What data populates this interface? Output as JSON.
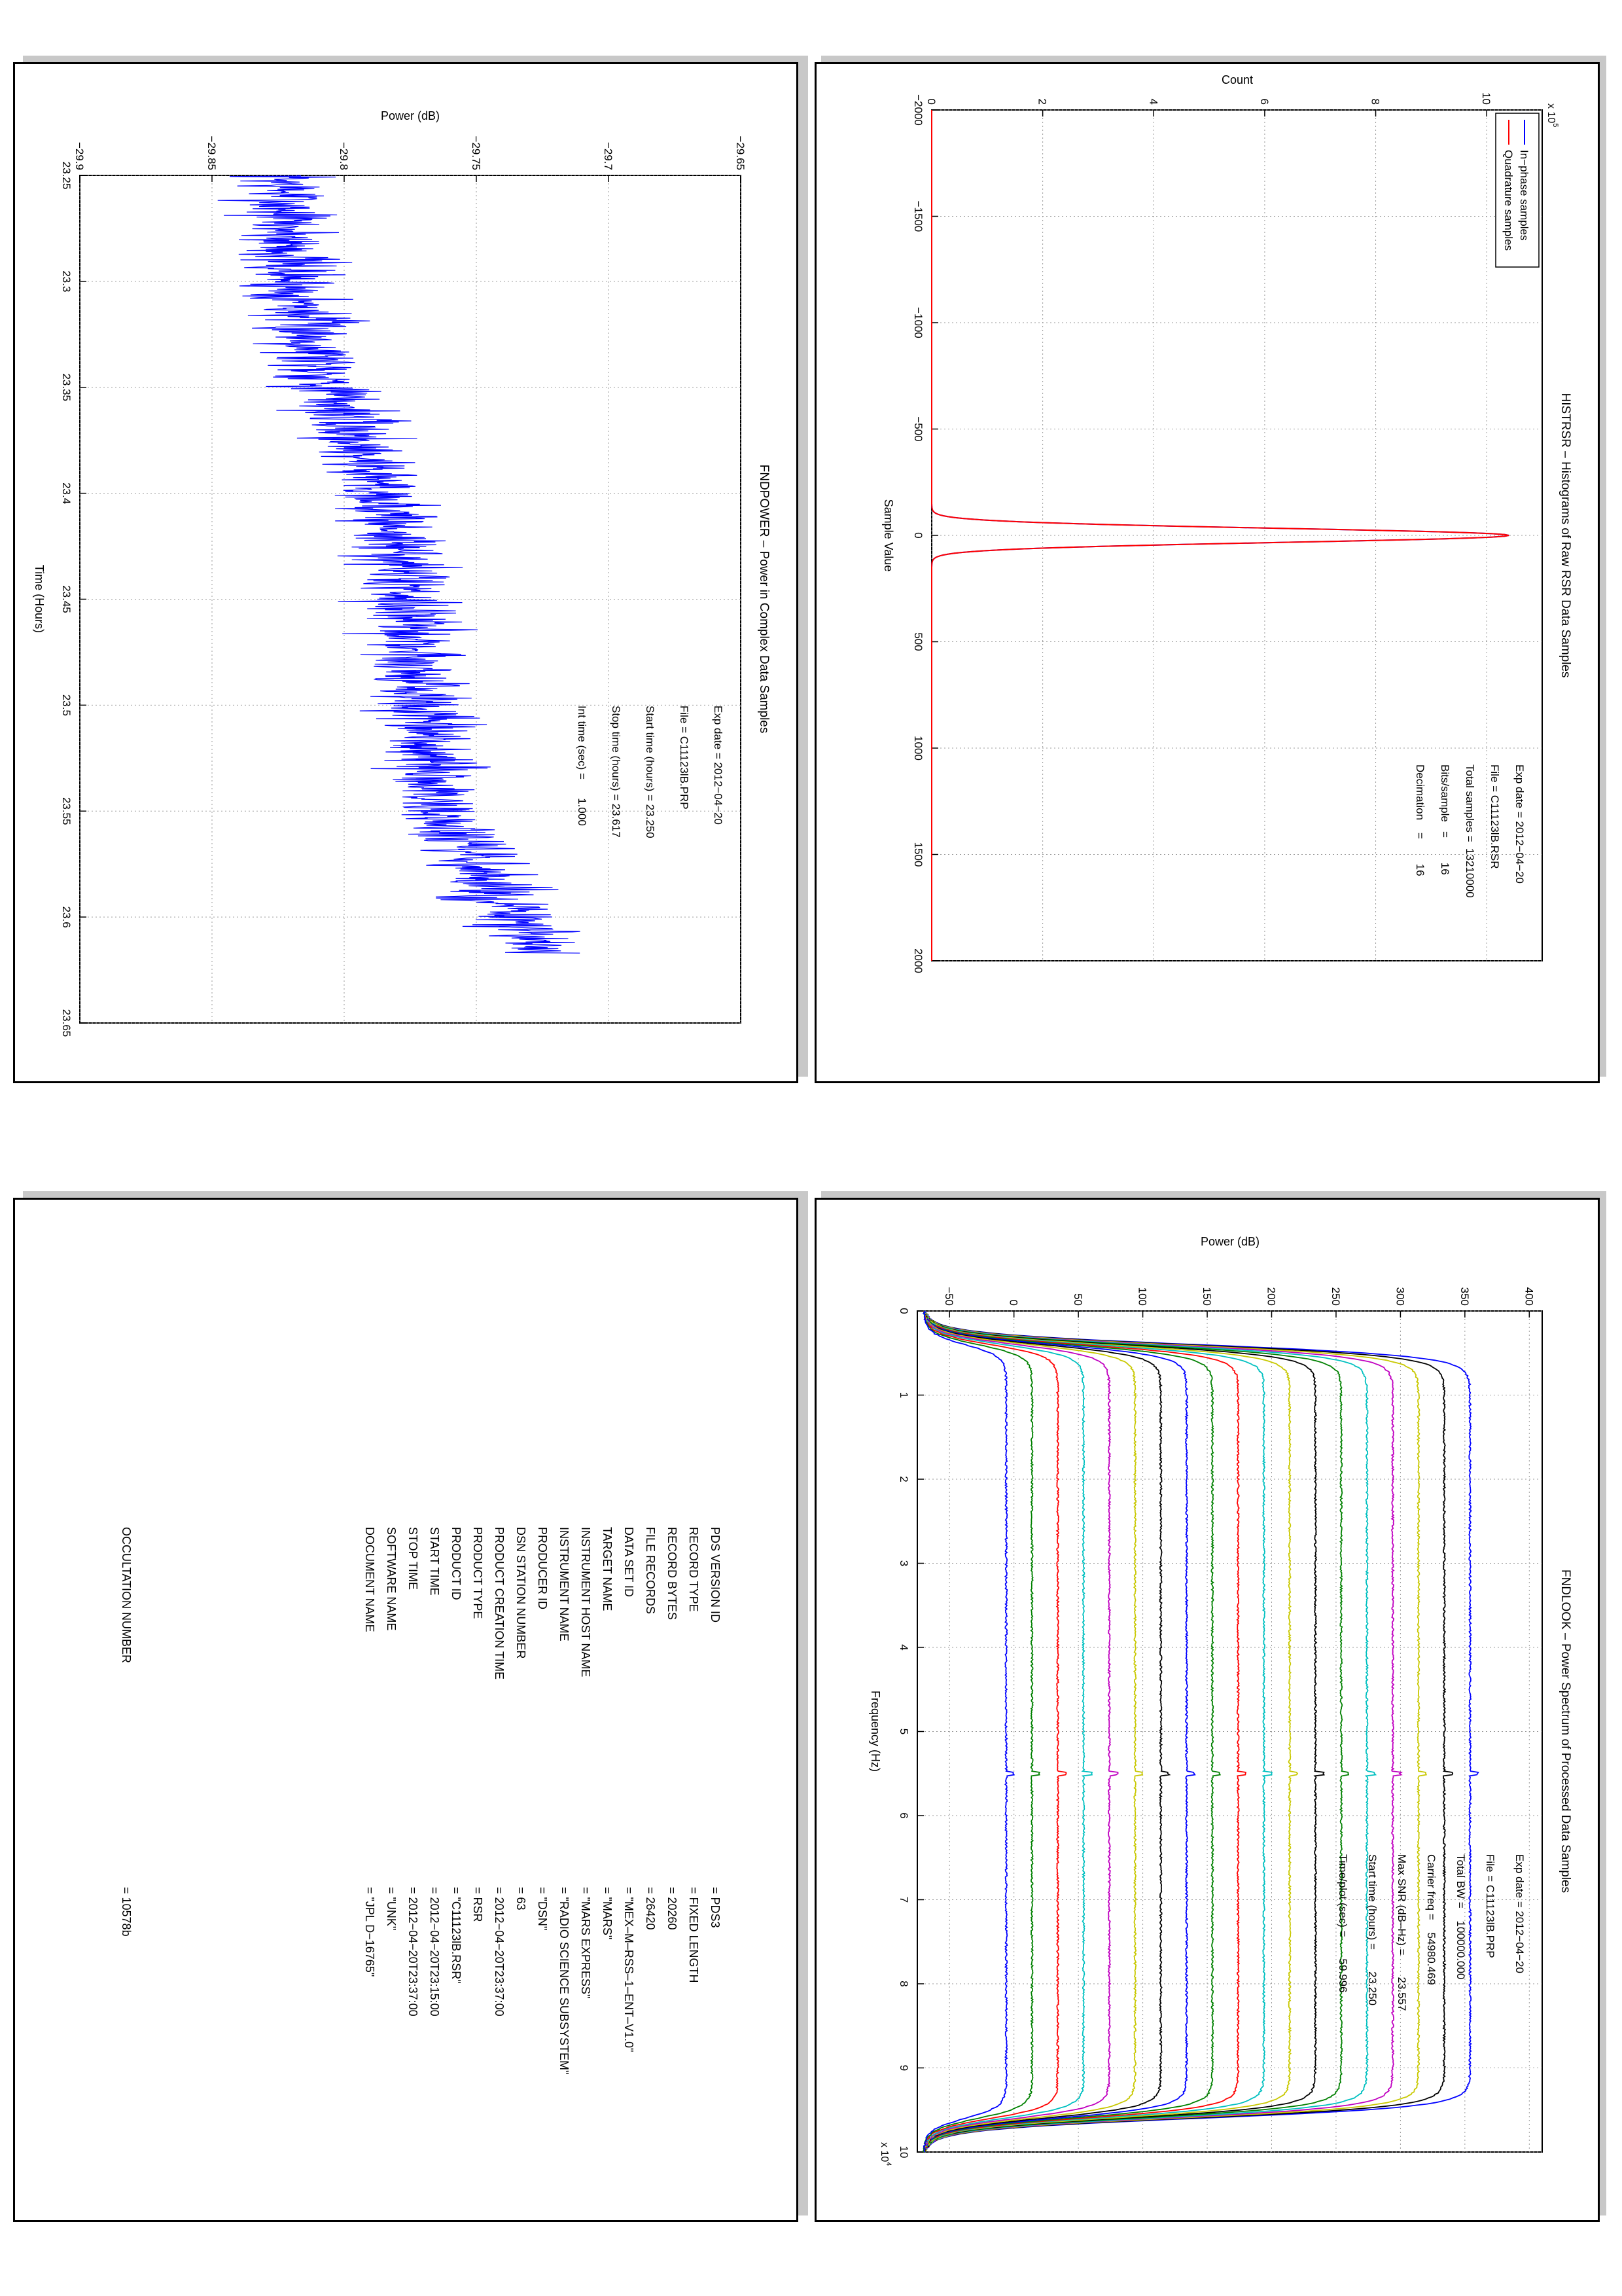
{
  "panels": {
    "histrsr": {
      "chart_data": {
        "type": "line",
        "title": "HISTRSR – Histograms of Raw RSR Data Samples",
        "xlabel": "Sample Value",
        "ylabel": "Count",
        "y_exponent": "x 10",
        "y_exponent_power": "5",
        "xlim": [
          -2000,
          2000
        ],
        "ylim": [
          0,
          11
        ],
        "xticks": [
          -2000,
          -1500,
          -1000,
          -500,
          0,
          500,
          1000,
          1500,
          2000
        ],
        "xtick_labels": [
          "−2000",
          "−1500",
          "−1000",
          "−500",
          "0",
          "500",
          "1000",
          "1500",
          "2000"
        ],
        "yticks": [
          0,
          2,
          4,
          6,
          8,
          10
        ],
        "ytick_labels": [
          "0",
          "2",
          "4",
          "6",
          "8",
          "10"
        ],
        "grid": true,
        "legend_position": "top-right",
        "series": [
          {
            "name": "In−phase samples",
            "color": "#0000ff",
            "model": "gaussian",
            "peak": 10.4,
            "center": 0,
            "sigma": 33
          },
          {
            "name": "Quadrature samples",
            "color": "#ff0000",
            "model": "gaussian",
            "peak": 10.4,
            "center": 0,
            "sigma": 33
          }
        ],
        "annotations": [
          "Exp date = 2012−04−20",
          "File = C11123lB.RSR",
          "Total samples =  13210000",
          "Bits/sample   =        16",
          "Decimation    =        16"
        ]
      }
    },
    "fndpower": {
      "chart_data": {
        "type": "line",
        "title": "FNDPOWER – Power in Complex Data Samples",
        "xlabel": "Time (Hours)",
        "ylabel": "Power (dB)",
        "xlim": [
          23.25,
          23.65
        ],
        "ylim": [
          -29.9,
          -29.65
        ],
        "xticks": [
          23.25,
          23.3,
          23.35,
          23.4,
          23.45,
          23.5,
          23.55,
          23.6,
          23.65
        ],
        "xtick_labels": [
          "23.25",
          "23.3",
          "23.35",
          "23.4",
          "23.45",
          "23.5",
          "23.55",
          "23.6",
          "23.65"
        ],
        "yticks": [
          -29.9,
          -29.85,
          -29.8,
          -29.75,
          -29.7,
          -29.65
        ],
        "ytick_labels": [
          "−29.9",
          "−29.85",
          "−29.8",
          "−29.75",
          "−29.7",
          "−29.65"
        ],
        "grid": true,
        "series": [
          {
            "name": "",
            "color": "#0000ff",
            "x": [
              23.25,
              23.3,
              23.35,
              23.4,
              23.45,
              23.5,
              23.55,
              23.6,
              23.617
            ],
            "y": [
              -29.823,
              -29.82,
              -29.805,
              -29.785,
              -29.775,
              -29.772,
              -29.765,
              -29.737,
              -29.727
            ],
            "noise_amplitude": 0.02
          }
        ],
        "annotations": [
          "Exp date = 2012−04−20",
          "File = C11123lB.PRP",
          "Start time (hours) = 23.250",
          "Stop time (hours) = 23.617",
          "Int time (sec) =      1.000"
        ]
      }
    },
    "fndlook": {
      "chart_data": {
        "type": "line",
        "title": "FNDLOOK – Power Spectrum of Processed Data Samples",
        "xlabel": "Frequency (Hz)",
        "ylabel": "Power (dB)",
        "x_exponent": "x 10",
        "x_exponent_power": "4",
        "xlim": [
          0,
          100000
        ],
        "ylim": [
          -75,
          410
        ],
        "xticks": [
          0,
          10000,
          20000,
          30000,
          40000,
          50000,
          60000,
          70000,
          80000,
          90000,
          100000
        ],
        "xtick_labels": [
          "0",
          "1",
          "2",
          "3",
          "4",
          "5",
          "6",
          "7",
          "8",
          "9",
          "10"
        ],
        "yticks": [
          -50,
          0,
          50,
          100,
          150,
          200,
          250,
          300,
          350,
          400
        ],
        "ytick_labels": [
          "−50",
          "0",
          "50",
          "100",
          "150",
          "200",
          "250",
          "300",
          "350",
          "400"
        ],
        "grid": true,
        "series": [
          {
            "name": "",
            "color": "#0000ff",
            "level": 354,
            "floor": -70
          },
          {
            "name": "",
            "color": "#000000",
            "level": 334,
            "floor": -70
          },
          {
            "name": "",
            "color": "#c8c800",
            "level": 314,
            "floor": -70
          },
          {
            "name": "",
            "color": "#c000c0",
            "level": 294,
            "floor": -70
          },
          {
            "name": "",
            "color": "#00c0c0",
            "level": 274,
            "floor": -70
          },
          {
            "name": "",
            "color": "#008000",
            "level": 254,
            "floor": -70
          },
          {
            "name": "",
            "color": "#000000",
            "level": 234,
            "floor": -70
          },
          {
            "name": "",
            "color": "#c8c800",
            "level": 214,
            "floor": -70
          },
          {
            "name": "",
            "color": "#00c0c0",
            "level": 194,
            "floor": -70
          },
          {
            "name": "",
            "color": "#ff0000",
            "level": 174,
            "floor": -70
          },
          {
            "name": "",
            "color": "#008000",
            "level": 154,
            "floor": -70
          },
          {
            "name": "",
            "color": "#0000ff",
            "level": 134,
            "floor": -70
          },
          {
            "name": "",
            "color": "#000000",
            "level": 114,
            "floor": -70
          },
          {
            "name": "",
            "color": "#c8c800",
            "level": 94,
            "floor": -70
          },
          {
            "name": "",
            "color": "#c000c0",
            "level": 74,
            "floor": -70
          },
          {
            "name": "",
            "color": "#00c0c0",
            "level": 54,
            "floor": -70
          },
          {
            "name": "",
            "color": "#ff0000",
            "level": 34,
            "floor": -70
          },
          {
            "name": "",
            "color": "#008000",
            "level": 14,
            "floor": -70
          },
          {
            "name": "",
            "color": "#0000ff",
            "level": -6,
            "floor": -70
          }
        ],
        "annotations": [
          "Exp date = 2012−04−20",
          "File = C11123lB.PRP",
          "Total BW =    100000.000",
          "Carrier freq =    54980.469",
          "Max SNR (dB–Hz) =       23.557",
          "Start time (hours) =       23.250",
          "Time/plot (sec) =       59.996"
        ]
      }
    },
    "labels": {
      "rows": [
        {
          "key": "PDS VERSION ID",
          "value": "= PDS3"
        },
        {
          "key": "RECORD TYPE",
          "value": "= FIXED LENGTH"
        },
        {
          "key": "RECORD BYTES",
          "value": "= 20260"
        },
        {
          "key": "FILE RECORDS",
          "value": "= 26420"
        },
        {
          "key": "DATA SET ID",
          "value": "= \"MEX–M–RSS–1–ENT–V1.0\""
        },
        {
          "key": "TARGET NAME",
          "value": "= \"MARS\""
        },
        {
          "key": "INSTRUMENT HOST NAME",
          "value": "= \"MARS EXPRESS\""
        },
        {
          "key": "INSTRUMENT NAME",
          "value": "= \"RADIO SCIENCE SUBSYSTEM\""
        },
        {
          "key": "PRODUCER ID",
          "value": "= \"DSN\""
        },
        {
          "key": "DSN STATION NUMBER",
          "value": "= 63"
        },
        {
          "key": "PRODUCT CREATION TIME",
          "value": "= 2012−04−20T23:37:00"
        },
        {
          "key": "PRODUCT TYPE",
          "value": "= RSR"
        },
        {
          "key": "PRODUCT ID",
          "value": "= \"C11123lB.RSR\""
        },
        {
          "key": "START TIME",
          "value": "= 2012−04−20T23:15:00"
        },
        {
          "key": "STOP TIME",
          "value": "= 2012−04−20T23:37:00"
        },
        {
          "key": "SOFTWARE NAME",
          "value": "= \"UNK\""
        },
        {
          "key": "DOCUMENT NAME",
          "value": "= \"JPL D−16765\""
        }
      ],
      "occultation": {
        "key": "OCCULTATION NUMBER",
        "value": "= 10578b"
      }
    }
  }
}
